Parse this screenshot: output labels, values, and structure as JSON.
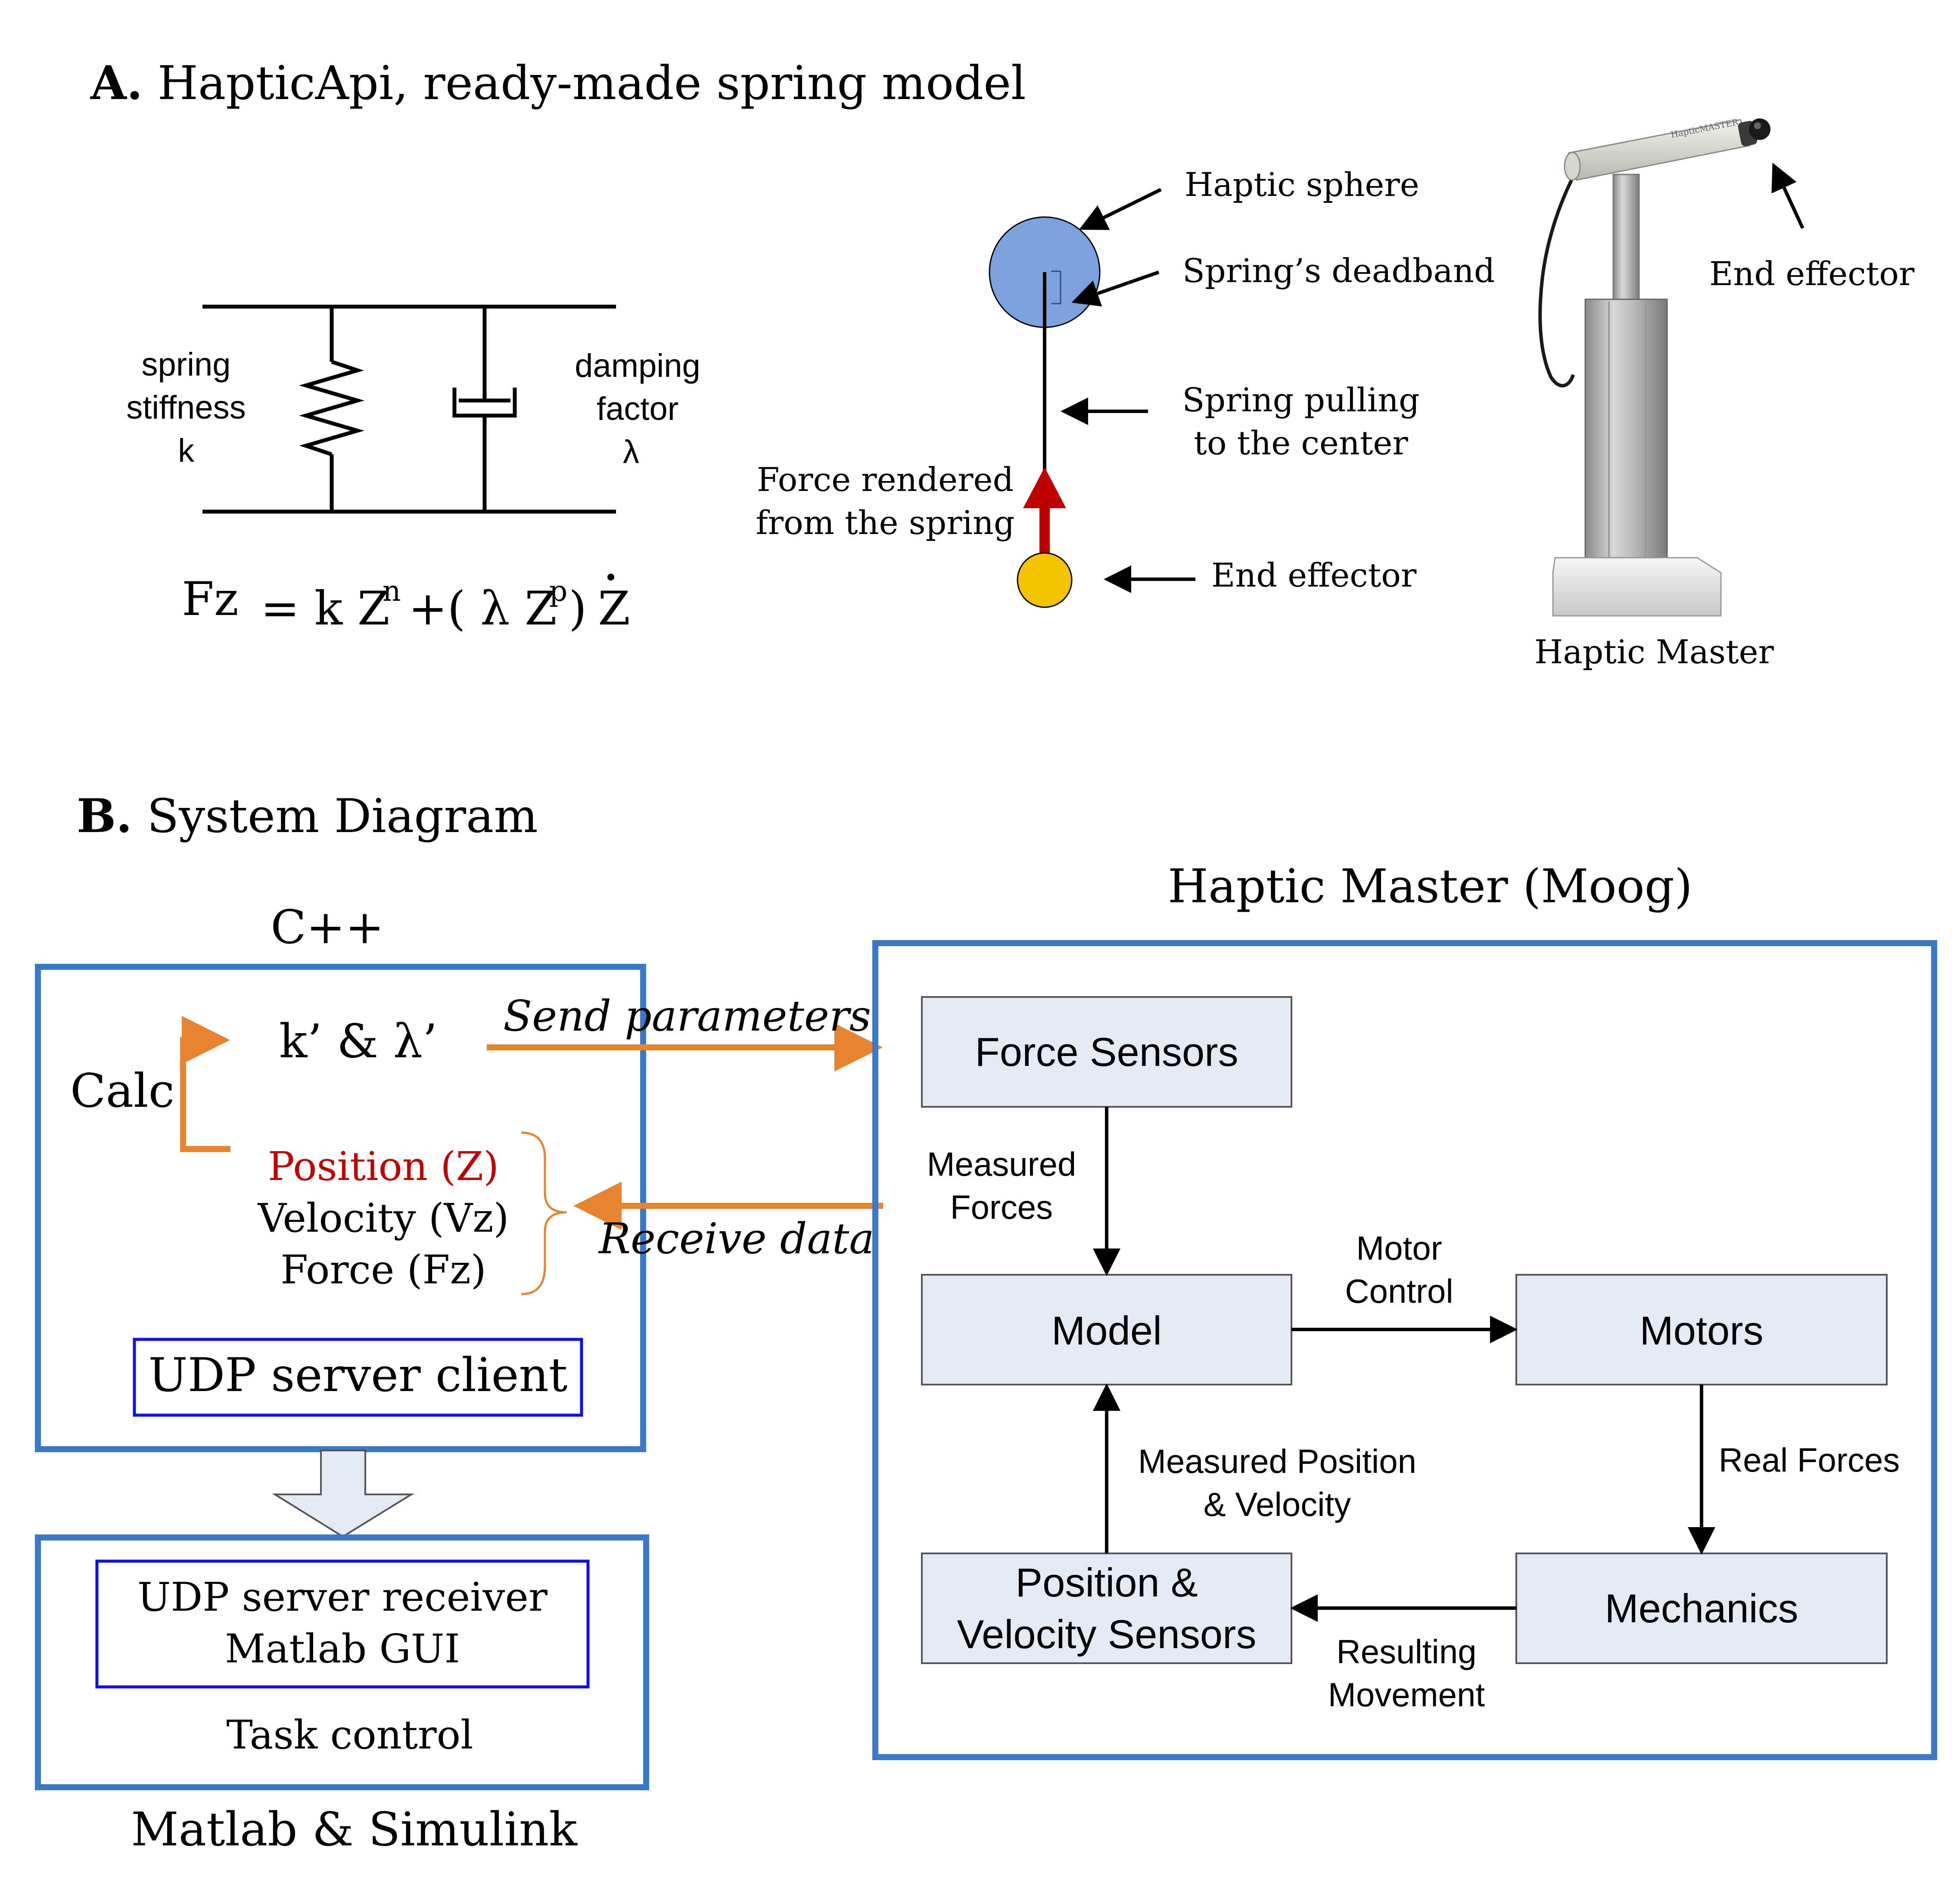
{
  "panel_a": {
    "letter": "A.",
    "title": " HapticApi, ready-made spring model",
    "spring_label": [
      "spring",
      "stiffness",
      "k"
    ],
    "damping_label": [
      "damping",
      "factor",
      "λ"
    ],
    "equation": {
      "lhs": "Fz",
      "eq_k": "= k Z",
      "n": "n",
      "plus": "+( λ Z",
      "p": "p",
      "close": ")",
      "zdot": "Z"
    },
    "sphere_labels": {
      "haptic_sphere": "Haptic sphere",
      "deadband": "Spring’s deadband",
      "pulling": [
        "Spring pulling",
        "to the center"
      ],
      "force": [
        "Force rendered",
        "from the spring"
      ],
      "end_effector": "End effector"
    },
    "device": {
      "end_effector": "End effector",
      "caption": "Haptic Master",
      "arm_logo": "HapticMASTER"
    }
  },
  "panel_b": {
    "letter": "B.",
    "title": " System Diagram",
    "cpp": {
      "title": "C++",
      "calc": "Calc",
      "params": "k’ & λ’",
      "position": "Position (Z)",
      "velocity": "Velocity (Vz)",
      "force": "Force (Fz)",
      "udp_client": "UDP server client"
    },
    "send_label": "Send parameters",
    "receive_label": "Receive data",
    "matlab": {
      "udp_receiver": "UDP server receiver",
      "gui": "Matlab GUI",
      "task": "Task control",
      "caption": "Matlab & Simulink"
    },
    "moog": {
      "title": "Haptic Master (Moog)",
      "force_sensors": "Force Sensors",
      "model": "Model",
      "motors": "Motors",
      "mechanics": "Mechanics",
      "pos_sensors": [
        "Position &",
        "Velocity Sensors"
      ],
      "measured_forces": [
        "Measured",
        "Forces"
      ],
      "motor_control": [
        "Motor",
        "Control"
      ],
      "real_forces": "Real Forces",
      "measured_pos": [
        "Measured Position",
        "& Velocity"
      ],
      "resulting": [
        "Resulting",
        "Movement"
      ]
    }
  },
  "colors": {
    "blue_frame": "#3a78c8",
    "inner_blue": "#1010e0",
    "orange": "#e88430",
    "red_text": "#c00000",
    "box_fill": "#e4eaf5",
    "sphere": "#7ba2dc",
    "end_ball": "#f5c200",
    "force_arrow": "#c00000"
  }
}
